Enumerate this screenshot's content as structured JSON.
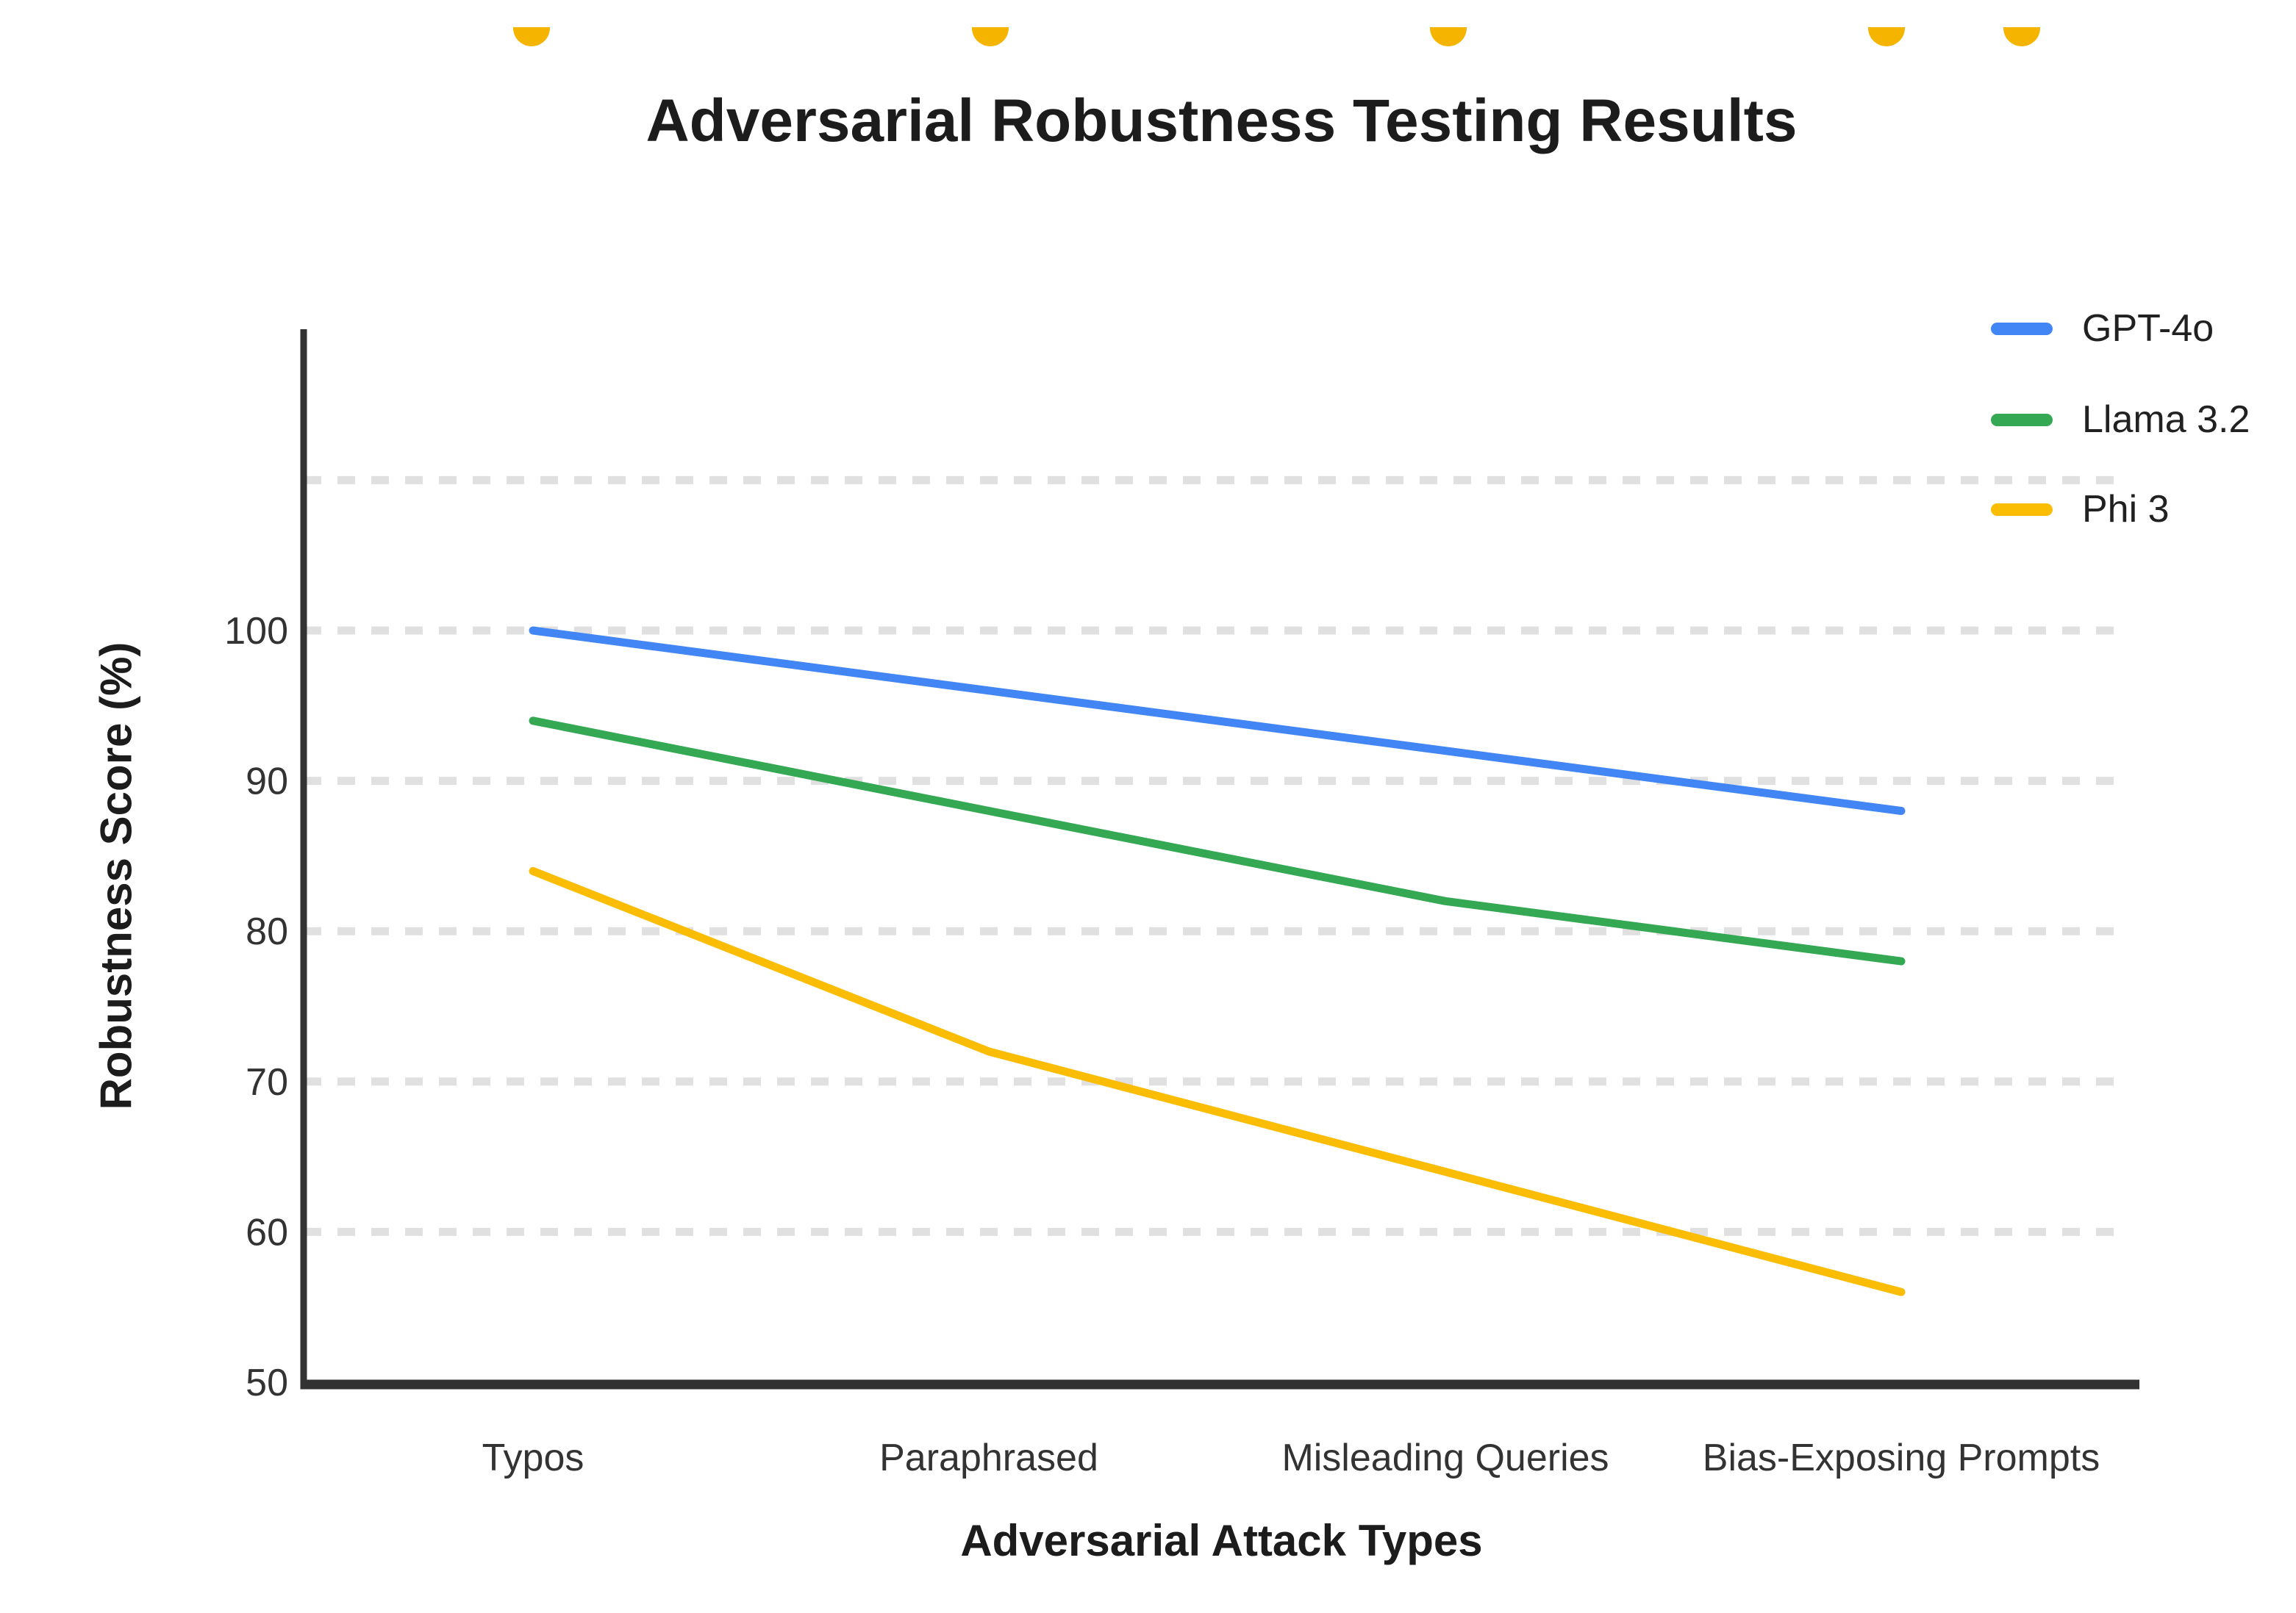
{
  "title": "Adversarial Robustness Testing Results",
  "x_axis_title": "Adversarial Attack Types",
  "y_axis_title": "Robustness Score (%)",
  "y_tick_labels": [
    "100",
    "90",
    "80",
    "70",
    "60",
    "50"
  ],
  "legend": {
    "position": "top-right",
    "entries": [
      "GPT-4o",
      "Llama 3.2",
      "Phi 3"
    ]
  },
  "colors": {
    "gpt4o_blue": "#4285F4",
    "llama_green": "#34A853",
    "phi_yellow": "#FBBC04",
    "axis": "#323232",
    "gridline": "#E0E0E0",
    "text": "#333333",
    "top_dot_yellow": "#F4B400"
  },
  "chart_data": {
    "type": "line",
    "title": "Adversarial Robustness Testing Results",
    "xlabel": "Adversarial Attack Types",
    "ylabel": "Robustness Score (%)",
    "categories": [
      "Typos",
      "Paraphrased",
      "Misleading Queries",
      "Bias-Exposing Prompts"
    ],
    "series": [
      {
        "name": "GPT-4o",
        "color": "#4285F4",
        "values": [
          100,
          96,
          92,
          88
        ]
      },
      {
        "name": "Llama 3.2",
        "color": "#34A853",
        "values": [
          94,
          88,
          82,
          78
        ]
      },
      {
        "name": "Phi 3",
        "color": "#FBBC04",
        "values": [
          84,
          72,
          64,
          56
        ]
      }
    ],
    "ylim": [
      50,
      120
    ],
    "y_ticks": [
      50,
      60,
      70,
      80,
      90,
      100
    ],
    "gridlines": {
      "values": [
        60,
        70,
        80,
        90,
        100,
        110
      ],
      "style": "dashed",
      "color": "#E0E0E0"
    },
    "grid": true,
    "legend_position": "top-right"
  },
  "decorations": {
    "top_clipped_dots": {
      "shape": "bottom-half-circle",
      "color": "#F4B400",
      "x_centers": [
        723,
        1347,
        1970,
        2566,
        2750
      ]
    }
  }
}
